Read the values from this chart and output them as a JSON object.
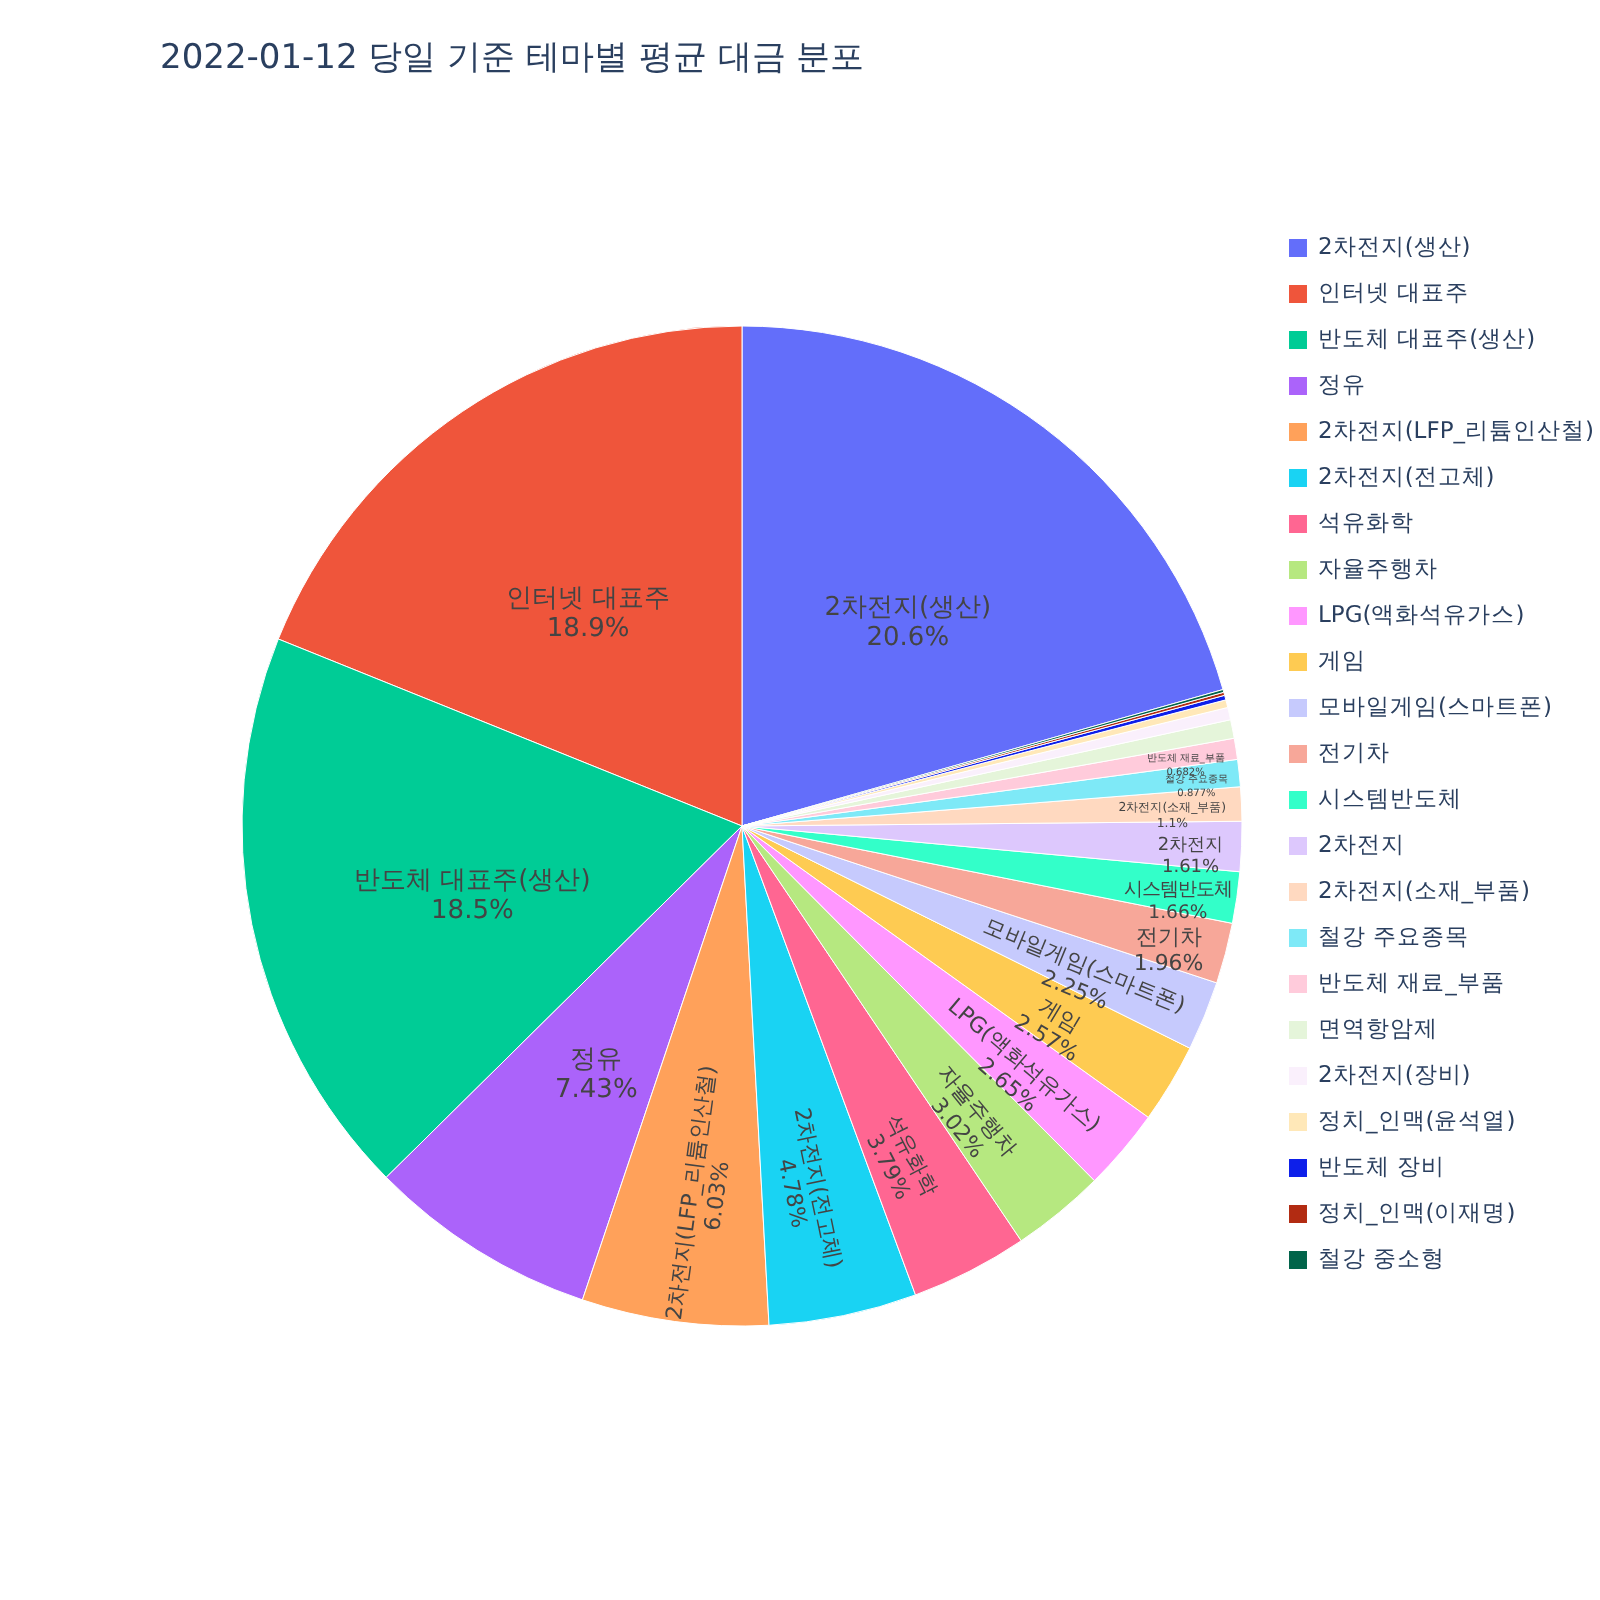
{
  "chart_data": {
    "type": "pie",
    "title": "2022-01-12 당일 기준 테마별 평균 대금 분포",
    "categories": [
      "2차전지(생산)",
      "인터넷 대표주",
      "반도체 대표주(생산)",
      "정유",
      "2차전지(LFP_리튬인산철)",
      "2차전지(전고체)",
      "석유화학",
      "자율주행차",
      "LPG(액화석유가스)",
      "게임",
      "모바일게임(스마트폰)",
      "전기차",
      "시스템반도체",
      "2차전지",
      "2차전지(소재_부품)",
      "철강 주요종목",
      "반도체 재료_부품",
      "면역항암제",
      "2차전지(장비)",
      "정치_인맥(윤석열)",
      "반도체 장비",
      "정치_인맥(이재명)",
      "철강 중소형"
    ],
    "values": [
      20.6,
      18.9,
      18.5,
      7.43,
      6.03,
      4.78,
      3.79,
      3.02,
      2.65,
      2.57,
      2.25,
      1.96,
      1.66,
      1.61,
      1.1,
      0.877,
      0.682,
      0.6,
      0.4,
      0.25,
      0.15,
      0.1,
      0.09
    ],
    "value_labels": [
      "20.6%",
      "18.9%",
      "18.5%",
      "7.43%",
      "6.03%",
      "4.78%",
      "3.79%",
      "3.02%",
      "2.65%",
      "2.57%",
      "2.25%",
      "1.96%",
      "1.66%",
      "1.61%",
      "1.1%",
      "0.877%",
      "0.682%",
      null,
      null,
      null,
      null,
      null,
      null
    ],
    "colors": [
      "#636efa",
      "#ef553b",
      "#00cc96",
      "#ab63fa",
      "#ffa15a",
      "#19d3f3",
      "#ff6692",
      "#b6e880",
      "#ff97ff",
      "#fecb52",
      "#c6cafd",
      "#f7a799",
      "#33ffc9",
      "#ddc8fd",
      "#ffd9c0",
      "#7ee9f7",
      "#ffcbdb",
      "#e5f5da",
      "#faf0fc",
      "#ffe8b8",
      "#0d1fea",
      "#b22b12",
      "#01644a"
    ],
    "legend": "top right"
  }
}
